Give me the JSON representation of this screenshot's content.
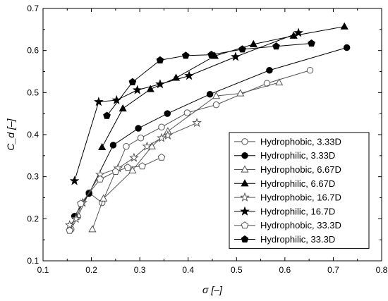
{
  "chart_data": {
    "type": "line",
    "xlabel": "σ [–]",
    "ylabel": "C_d [–]",
    "xlim": [
      0.1,
      0.8
    ],
    "ylim": [
      0.1,
      0.7
    ],
    "xticks": [
      0.1,
      0.2,
      0.3,
      0.4,
      0.5,
      0.6,
      0.7,
      0.8
    ],
    "yticks": [
      0.1,
      0.2,
      0.3,
      0.4,
      0.5,
      0.6,
      0.7
    ],
    "xtick_labels": [
      "0.1",
      "0.2",
      "0.3",
      "0.4",
      "0.5",
      "0.6",
      "0.7",
      "0.8"
    ],
    "ytick_labels": [
      "0.1",
      "0.2",
      "0.3",
      "0.4",
      "0.5",
      "0.6",
      "0.7"
    ],
    "grid": false,
    "legend_position": "lower-right",
    "series": [
      {
        "name": "Hydrophobic, 3.33D",
        "marker": "circle",
        "filled": false,
        "x": [
          0.158,
          0.172,
          0.195,
          0.222,
          0.272,
          0.302,
          0.345,
          0.398,
          0.458,
          0.563,
          0.652
        ],
        "y": [
          0.175,
          0.205,
          0.262,
          0.238,
          0.372,
          0.392,
          0.418,
          0.452,
          0.471,
          0.522,
          0.553
        ]
      },
      {
        "name": "Hydrophilic, 3.33D",
        "marker": "circle",
        "filled": true,
        "x": [
          0.165,
          0.195,
          0.245,
          0.297,
          0.357,
          0.445,
          0.568,
          0.728
        ],
        "y": [
          0.206,
          0.26,
          0.375,
          0.415,
          0.45,
          0.496,
          0.553,
          0.607
        ]
      },
      {
        "name": "Hydrophobic, 6.67D",
        "marker": "triangle",
        "filled": false,
        "x": [
          0.202,
          0.225,
          0.285,
          0.325,
          0.358,
          0.458,
          0.508,
          0.588
        ],
        "y": [
          0.175,
          0.248,
          0.315,
          0.372,
          0.408,
          0.492,
          0.498,
          0.524
        ]
      },
      {
        "name": "Hydrophilic, 6.67D",
        "marker": "triangle",
        "filled": true,
        "x": [
          0.222,
          0.265,
          0.322,
          0.375,
          0.455,
          0.535,
          0.618,
          0.723
        ],
        "y": [
          0.37,
          0.462,
          0.508,
          0.535,
          0.587,
          0.615,
          0.635,
          0.657
        ]
      },
      {
        "name": "Hydrophobic, 16.7D",
        "marker": "star",
        "filled": false,
        "x": [
          0.155,
          0.168,
          0.182,
          0.218,
          0.255,
          0.288,
          0.315,
          0.345,
          0.358,
          0.418
        ],
        "y": [
          0.185,
          0.2,
          0.238,
          0.305,
          0.32,
          0.345,
          0.372,
          0.392,
          0.398,
          0.428
        ]
      },
      {
        "name": "Hydrophilic, 16.7D",
        "marker": "star",
        "filled": true,
        "x": [
          0.165,
          0.215,
          0.252,
          0.295,
          0.342,
          0.402,
          0.498,
          0.628
        ],
        "y": [
          0.29,
          0.478,
          0.482,
          0.506,
          0.52,
          0.54,
          0.585,
          0.642
        ]
      },
      {
        "name": "Hydrophobic, 33.3D",
        "marker": "pentagon",
        "filled": false,
        "x": [
          0.155,
          0.178,
          0.218,
          0.25,
          0.275,
          0.305,
          0.345
        ],
        "y": [
          0.172,
          0.236,
          0.294,
          0.312,
          0.322,
          0.325,
          0.346
        ]
      },
      {
        "name": "Hydrophilic, 33.3D",
        "marker": "pentagon",
        "filled": true,
        "x": [
          0.232,
          0.285,
          0.342,
          0.395,
          0.448,
          0.512,
          0.582,
          0.655
        ],
        "y": [
          0.445,
          0.525,
          0.577,
          0.588,
          0.59,
          0.603,
          0.61,
          0.617
        ]
      }
    ]
  }
}
